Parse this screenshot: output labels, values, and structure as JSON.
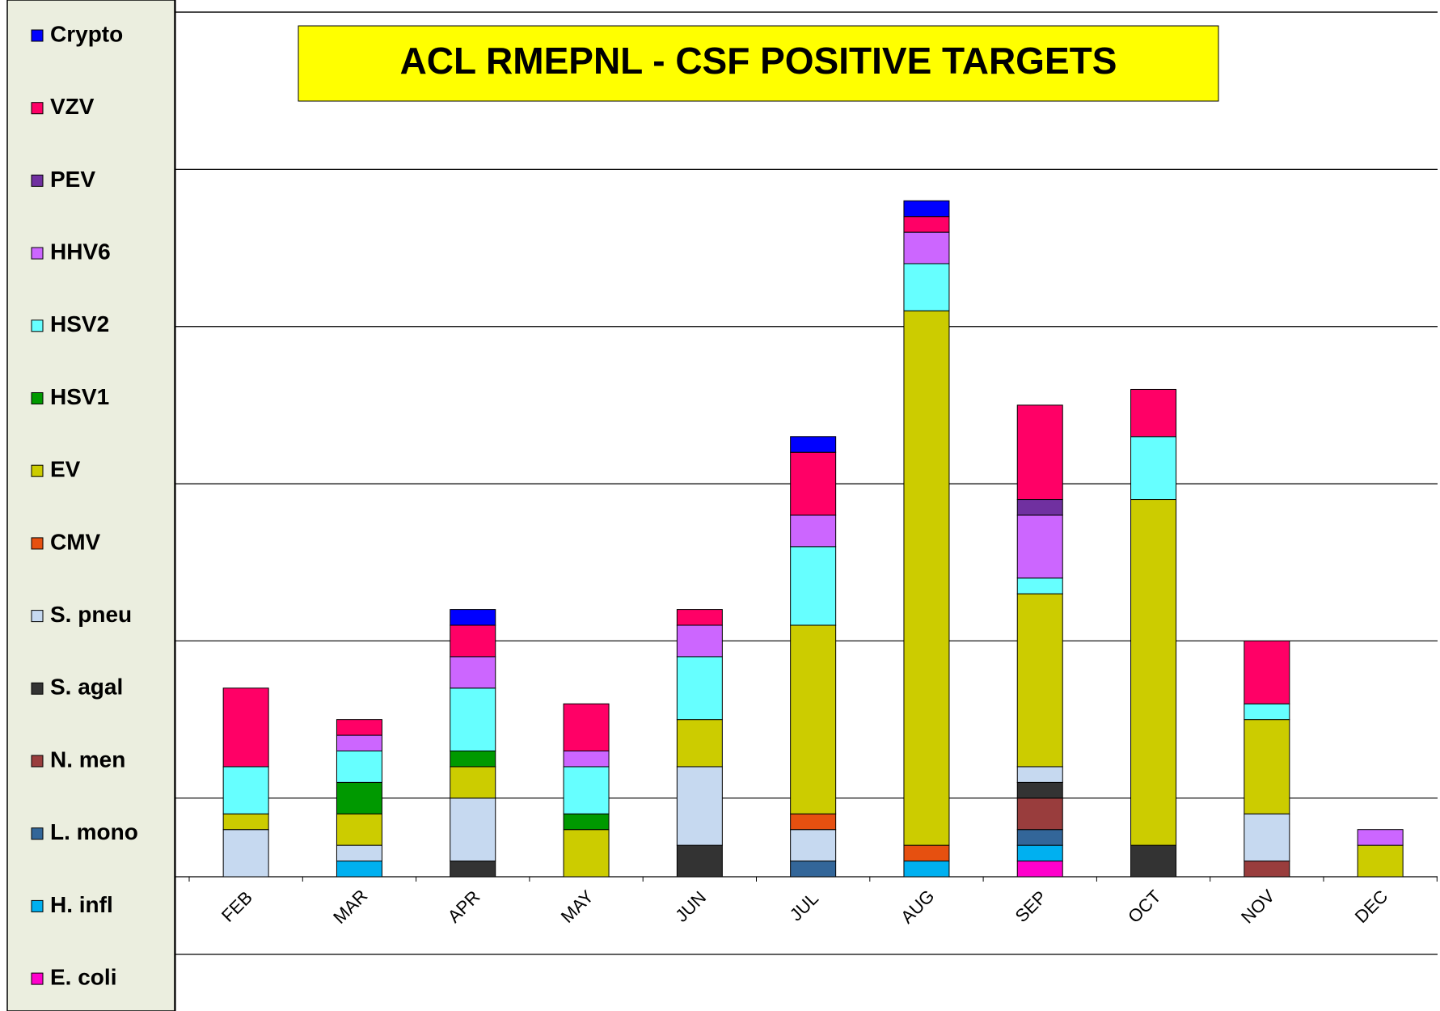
{
  "chart_data": {
    "type": "stacked_bar",
    "title": "ACL RMEPNL - CSF POSITIVE TARGETS",
    "categories": [
      "FEB",
      "MAR",
      "APR",
      "MAY",
      "JUN",
      "JUL",
      "AUG",
      "SEP",
      "OCT",
      "NOV",
      "DEC"
    ],
    "ylim": [
      0,
      55
    ],
    "gridlines": [
      5,
      15,
      25,
      35,
      45,
      55
    ],
    "series": [
      {
        "name": "E. coli",
        "color": "#ff00cc",
        "values": [
          0,
          0,
          0,
          0,
          0,
          0,
          0,
          1,
          0,
          0,
          0
        ]
      },
      {
        "name": "H. infl",
        "color": "#00b0f0",
        "values": [
          0,
          1,
          0,
          0,
          0,
          0,
          1,
          1,
          0,
          0,
          0
        ]
      },
      {
        "name": "L. mono",
        "color": "#336699",
        "values": [
          0,
          0,
          0,
          0,
          0,
          1,
          0,
          1,
          0,
          0,
          0
        ]
      },
      {
        "name": "N. men",
        "color": "#993d3d",
        "values": [
          0,
          0,
          0,
          0,
          0,
          0,
          0,
          2,
          0,
          1,
          0
        ]
      },
      {
        "name": "S. agal",
        "color": "#333333",
        "values": [
          0,
          0,
          1,
          0,
          2,
          0,
          0,
          1,
          2,
          0,
          0
        ]
      },
      {
        "name": "S. pneu",
        "color": "#c6d9f0",
        "values": [
          3,
          1,
          4,
          0,
          5,
          2,
          0,
          1,
          0,
          3,
          0
        ]
      },
      {
        "name": "CMV",
        "color": "#e65010",
        "values": [
          0,
          0,
          0,
          0,
          0,
          1,
          1,
          0,
          0,
          0,
          0
        ]
      },
      {
        "name": "EV",
        "color": "#cccc00",
        "values": [
          1,
          2,
          2,
          3,
          3,
          12,
          34,
          11,
          22,
          6,
          2
        ]
      },
      {
        "name": "HSV1",
        "color": "#009900",
        "values": [
          0,
          2,
          1,
          1,
          0,
          0,
          0,
          0,
          0,
          0,
          0
        ]
      },
      {
        "name": "HSV2",
        "color": "#66ffff",
        "values": [
          3,
          2,
          4,
          3,
          4,
          5,
          3,
          1,
          4,
          1,
          0
        ]
      },
      {
        "name": "HHV6",
        "color": "#cc66ff",
        "values": [
          0,
          1,
          2,
          1,
          2,
          2,
          2,
          4,
          0,
          0,
          1
        ]
      },
      {
        "name": "PEV",
        "color": "#7030a0",
        "values": [
          0,
          0,
          0,
          0,
          0,
          0,
          0,
          1,
          0,
          0,
          0
        ]
      },
      {
        "name": "VZV",
        "color": "#ff0066",
        "values": [
          5,
          1,
          2,
          3,
          1,
          4,
          1,
          6,
          3,
          4,
          0
        ]
      },
      {
        "name": "Crypto",
        "color": "#0000ff",
        "values": [
          0,
          0,
          1,
          0,
          0,
          1,
          1,
          0,
          0,
          0,
          0
        ]
      }
    ]
  }
}
